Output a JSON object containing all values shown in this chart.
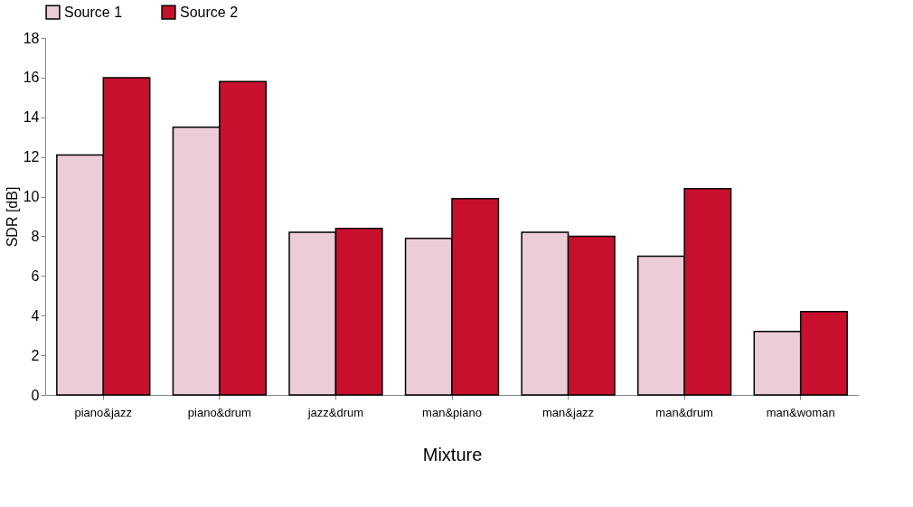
{
  "chart_data": {
    "type": "bar",
    "xlabel": "Mixture",
    "ylabel": "SDR [dB]",
    "categories": [
      "piano&jazz",
      "piano&drum",
      "jazz&drum",
      "man&piano",
      "man&jazz",
      "man&drum",
      "man&woman"
    ],
    "series": [
      {
        "name": "Source 1",
        "color": "#ecccd9",
        "values": [
          12.1,
          13.5,
          8.2,
          7.9,
          8.2,
          7.0,
          3.2
        ]
      },
      {
        "name": "Source 2",
        "color": "#c8102e",
        "values": [
          16.0,
          15.8,
          8.4,
          9.9,
          8.0,
          10.4,
          4.2
        ]
      }
    ],
    "ylim": [
      0,
      18
    ],
    "yticks": [
      0,
      2,
      4,
      6,
      8,
      10,
      12,
      14,
      16,
      18
    ],
    "grid": false,
    "legend": "top"
  }
}
